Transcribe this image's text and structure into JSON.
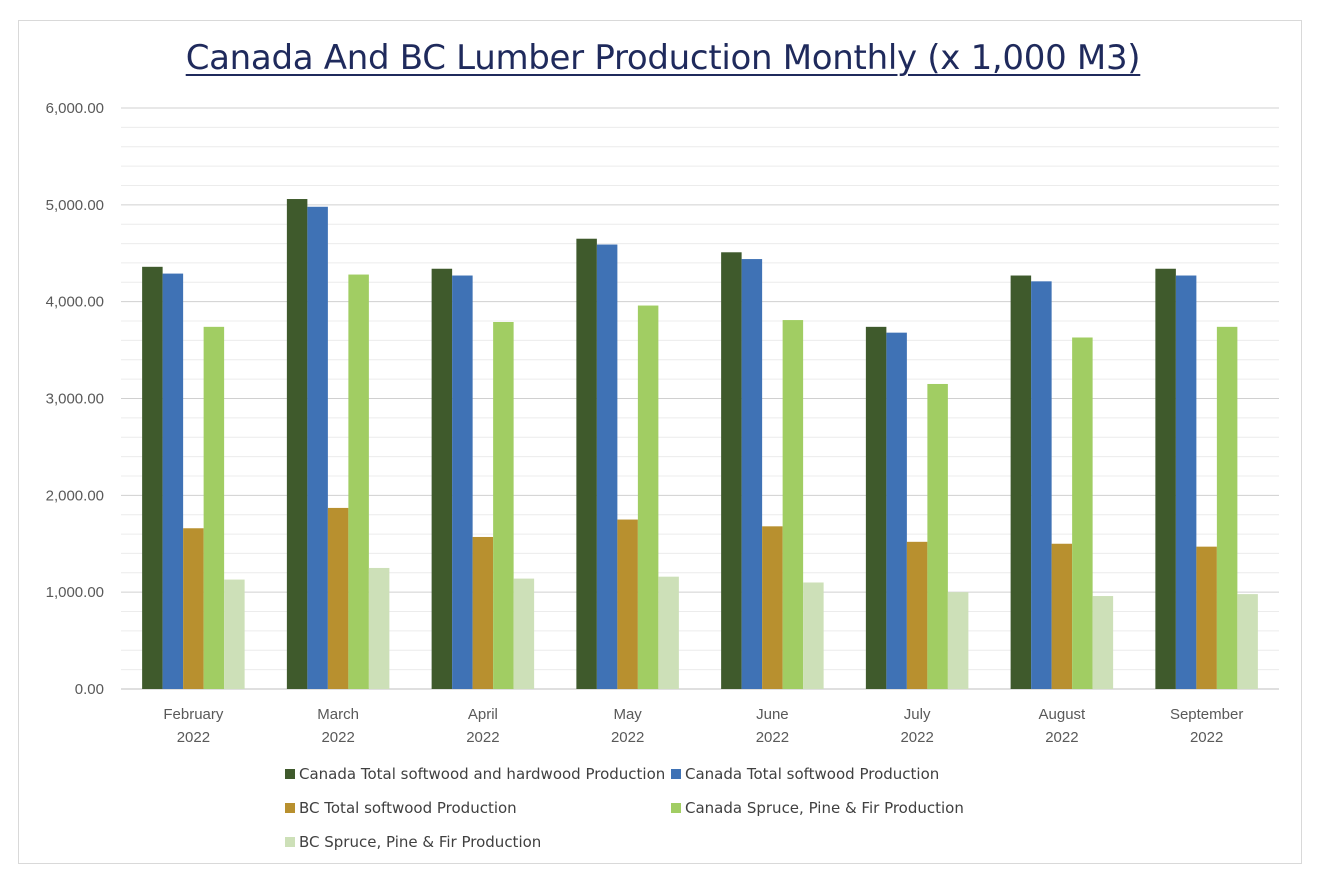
{
  "chart_data": {
    "type": "bar",
    "title": "Canada And BC Lumber Production Monthly (x 1,000 M3)",
    "xlabel": "",
    "ylabel": "",
    "ylim": [
      0,
      6000
    ],
    "major_ticks": [
      0,
      1000,
      2000,
      3000,
      4000,
      5000,
      6000
    ],
    "minor_tick_step": 200,
    "tick_labels": [
      "0.00",
      "1,000.00",
      "2,000.00",
      "3,000.00",
      "4,000.00",
      "5,000.00",
      "6,000.00"
    ],
    "grid": true,
    "legend_position": "bottom",
    "categories": [
      [
        "February",
        "2022"
      ],
      [
        "March",
        "2022"
      ],
      [
        "April",
        "2022"
      ],
      [
        "May",
        "2022"
      ],
      [
        "June",
        "2022"
      ],
      [
        "July",
        "2022"
      ],
      [
        "August",
        "2022"
      ],
      [
        "September",
        "2022"
      ]
    ],
    "series": [
      {
        "name": "Canada Total softwood and hardwood Production",
        "color": "#3f5a2c",
        "values": [
          4360,
          5060,
          4340,
          4650,
          4510,
          3740,
          4270,
          4340
        ]
      },
      {
        "name": "Canada Total softwood Production",
        "color": "#3f72b5",
        "values": [
          4290,
          4980,
          4270,
          4590,
          4440,
          3680,
          4210,
          4270
        ]
      },
      {
        "name": "BC Total softwood Production",
        "color": "#b8902f",
        "values": [
          1660,
          1870,
          1570,
          1750,
          1680,
          1520,
          1500,
          1470
        ]
      },
      {
        "name": "Canada Spruce, Pine & Fir Production",
        "color": "#a1cd63",
        "values": [
          3740,
          4280,
          3790,
          3960,
          3810,
          3150,
          3630,
          3740
        ]
      },
      {
        "name": "BC Spruce, Pine & Fir Production",
        "color": "#cde0b8",
        "values": [
          1130,
          1250,
          1140,
          1160,
          1100,
          1000,
          960,
          980
        ]
      }
    ]
  }
}
